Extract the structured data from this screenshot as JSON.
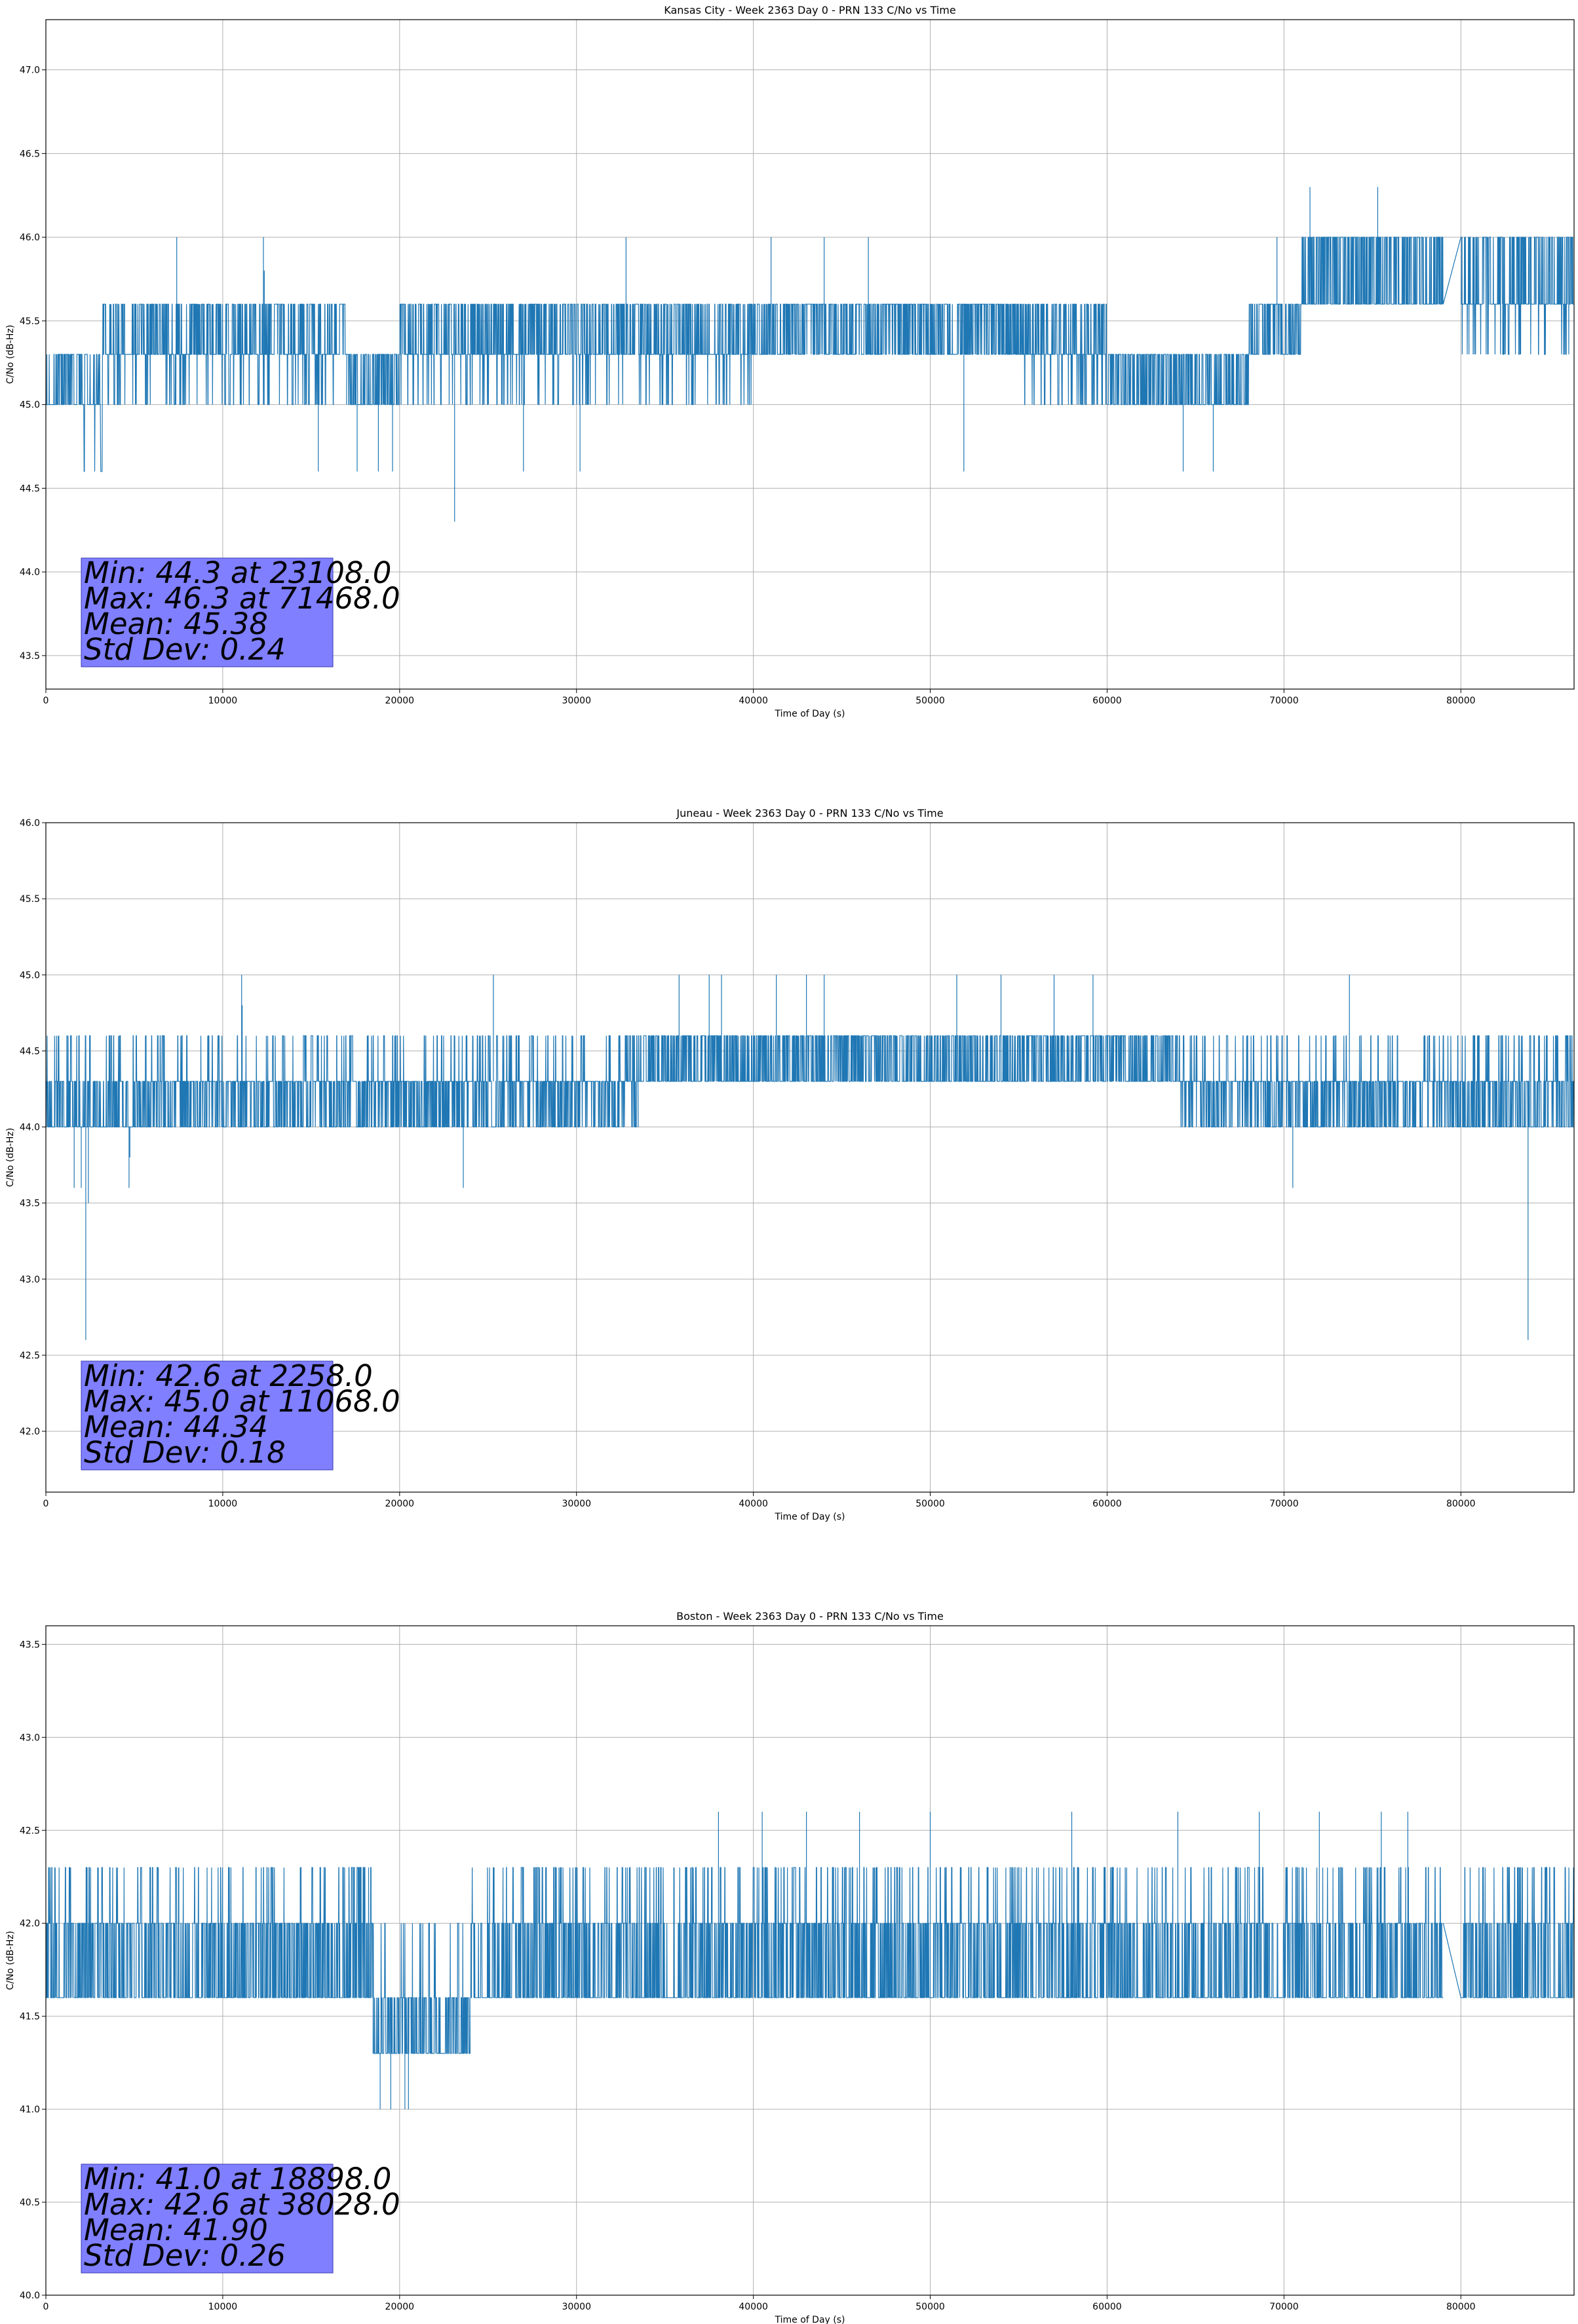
{
  "figure": {
    "description_type": "stacked C/No line charts"
  },
  "chart_data": [
    {
      "type": "line",
      "title": "Kansas City - Week 2363 Day 0 - PRN 133 C/No vs Time",
      "xlabel": "Time of Day (s)",
      "ylabel": "C/No (dB-Hz)",
      "xlim": [
        0,
        86400
      ],
      "ylim": [
        43.3,
        47.3
      ],
      "xticks": [
        0,
        10000,
        20000,
        30000,
        40000,
        50000,
        60000,
        70000,
        80000
      ],
      "yticks": [
        43.5,
        44.0,
        44.5,
        45.0,
        45.5,
        46.0,
        46.5,
        47.0
      ],
      "ytick_decimals": 1,
      "color": "#1f77b4",
      "seed": 11,
      "segments": [
        {
          "x0": 0,
          "x1": 2000,
          "levels": [
            45.0,
            45.3
          ],
          "seg": 180
        },
        {
          "x0": 2000,
          "x1": 3200,
          "levels": [
            45.0,
            45.3,
            44.6
          ],
          "seg": 60
        },
        {
          "x0": 3200,
          "x1": 17000,
          "levels": [
            45.3,
            45.6,
            45.0
          ],
          "seg": 1200
        },
        {
          "x0": 17000,
          "x1": 20000,
          "levels": [
            45.0,
            45.3
          ],
          "seg": 250
        },
        {
          "x0": 20000,
          "x1": 40000,
          "levels": [
            45.3,
            45.6,
            45.0
          ],
          "seg": 1700
        },
        {
          "x0": 40000,
          "x1": 55000,
          "levels": [
            45.6,
            45.3
          ],
          "seg": 1400
        },
        {
          "x0": 55000,
          "x1": 60000,
          "levels": [
            45.3,
            45.6,
            45.0
          ],
          "seg": 400
        },
        {
          "x0": 60000,
          "x1": 68000,
          "levels": [
            45.0,
            45.3
          ],
          "seg": 700
        },
        {
          "x0": 68000,
          "x1": 71000,
          "levels": [
            45.3,
            45.6
          ],
          "seg": 250
        },
        {
          "x0": 71000,
          "x1": 79000,
          "levels": [
            45.6,
            46.0
          ],
          "seg": 800
        },
        {
          "x0": 80000,
          "x1": 86400,
          "levels": [
            45.6,
            46.0,
            45.3
          ],
          "seg": 600
        }
      ],
      "bridges": [
        {
          "x0": 79000,
          "y0": 45.6,
          "x1": 80000,
          "y1": 46.0
        }
      ],
      "spikes": [
        [
          7400,
          46.0
        ],
        [
          12300,
          46.0
        ],
        [
          12350,
          45.8
        ],
        [
          15400,
          44.6
        ],
        [
          17600,
          44.6
        ],
        [
          18800,
          44.6
        ],
        [
          19600,
          44.6
        ],
        [
          23108,
          44.3
        ],
        [
          27000,
          44.6
        ],
        [
          30200,
          44.6
        ],
        [
          32800,
          46.0
        ],
        [
          41000,
          46.0
        ],
        [
          44000,
          46.0
        ],
        [
          46500,
          46.0
        ],
        [
          51900,
          44.6
        ],
        [
          64300,
          44.6
        ],
        [
          66000,
          44.6
        ],
        [
          69600,
          46.0
        ],
        [
          71468,
          46.3
        ],
        [
          75300,
          46.3
        ],
        [
          77000,
          46.0
        ],
        [
          85000,
          46.0
        ]
      ],
      "stats": [
        "Min: 44.3 at 23108.0",
        "Max: 46.3 at 71468.0",
        "Mean: 45.38",
        "Std Dev: 0.24"
      ]
    },
    {
      "type": "line",
      "title": "Juneau - Week 2363 Day 0 - PRN 133 C/No vs Time",
      "xlabel": "Time of Day (s)",
      "ylabel": "C/No (dB-Hz)",
      "xlim": [
        0,
        86400
      ],
      "ylim": [
        41.6,
        46.0
      ],
      "xticks": [
        0,
        10000,
        20000,
        30000,
        40000,
        50000,
        60000,
        70000,
        80000
      ],
      "yticks": [
        42.0,
        42.5,
        43.0,
        43.5,
        44.0,
        44.5,
        45.0,
        45.5,
        46.0
      ],
      "ytick_decimals": 1,
      "color": "#1f77b4",
      "seed": 23,
      "segments": [
        {
          "x0": 0,
          "x1": 6000,
          "levels": [
            44.0,
            44.3,
            44.6
          ],
          "seg": 500
        },
        {
          "x0": 6000,
          "x1": 33500,
          "levels": [
            44.3,
            44.0,
            44.6
          ],
          "seg": 2400
        },
        {
          "x0": 33500,
          "x1": 64000,
          "levels": [
            44.3,
            44.6
          ],
          "seg": 2600
        },
        {
          "x0": 64000,
          "x1": 86400,
          "levels": [
            44.3,
            44.0,
            44.6
          ],
          "seg": 1900
        }
      ],
      "bridges": [],
      "spikes": [
        [
          1600,
          43.6
        ],
        [
          2000,
          43.6
        ],
        [
          2258,
          42.6
        ],
        [
          2400,
          43.5
        ],
        [
          4700,
          43.6
        ],
        [
          4750,
          43.8
        ],
        [
          11068,
          45.0
        ],
        [
          11100,
          44.8
        ],
        [
          23600,
          43.6
        ],
        [
          25300,
          45.0
        ],
        [
          35800,
          45.0
        ],
        [
          37500,
          45.0
        ],
        [
          38200,
          45.0
        ],
        [
          41300,
          45.0
        ],
        [
          43000,
          45.0
        ],
        [
          44000,
          45.0
        ],
        [
          51500,
          45.0
        ],
        [
          54000,
          45.0
        ],
        [
          57000,
          45.0
        ],
        [
          59200,
          45.0
        ],
        [
          70500,
          43.6
        ],
        [
          73700,
          45.0
        ],
        [
          83800,
          42.6
        ]
      ],
      "stats": [
        "Min: 42.6 at 2258.0",
        "Max: 45.0 at 11068.0",
        "Mean: 44.34",
        "Std Dev: 0.18"
      ]
    },
    {
      "type": "line",
      "title": "Boston - Week 2363 Day 0 - PRN 133 C/No vs Time",
      "xlabel": "Time of Day (s)",
      "ylabel": "C/No (dB-Hz)",
      "xlim": [
        0,
        86400
      ],
      "ylim": [
        40.0,
        43.6
      ],
      "xticks": [
        0,
        10000,
        20000,
        30000,
        40000,
        50000,
        60000,
        70000,
        80000
      ],
      "yticks": [
        40.0,
        40.5,
        41.0,
        41.5,
        42.0,
        42.5,
        43.0,
        43.5
      ],
      "ytick_decimals": 1,
      "color": "#1f77b4",
      "seed": 37,
      "segments": [
        {
          "x0": 0,
          "x1": 7000,
          "levels": [
            41.6,
            42.0,
            42.3
          ],
          "seg": 600
        },
        {
          "x0": 7000,
          "x1": 18500,
          "levels": [
            41.6,
            42.0,
            42.3,
            41.3
          ],
          "seg": 1000
        },
        {
          "x0": 18500,
          "x1": 24000,
          "levels": [
            41.3,
            41.6,
            42.0
          ],
          "seg": 450
        },
        {
          "x0": 24000,
          "x1": 34000,
          "levels": [
            41.6,
            42.0,
            42.3,
            41.3
          ],
          "seg": 850
        },
        {
          "x0": 34000,
          "x1": 79000,
          "levels": [
            41.6,
            42.0,
            42.3
          ],
          "seg": 3900
        },
        {
          "x0": 80000,
          "x1": 86400,
          "levels": [
            41.6,
            42.0,
            42.3
          ],
          "seg": 550
        }
      ],
      "bridges": [
        {
          "x0": 79000,
          "y0": 42.0,
          "x1": 80000,
          "y1": 41.6
        }
      ],
      "spikes": [
        [
          18898,
          41.0
        ],
        [
          19500,
          41.0
        ],
        [
          20300,
          41.0
        ],
        [
          20500,
          41.0
        ],
        [
          38028,
          42.6
        ],
        [
          40500,
          42.6
        ],
        [
          43000,
          42.6
        ],
        [
          46000,
          42.6
        ],
        [
          50000,
          42.6
        ],
        [
          58000,
          42.6
        ],
        [
          64000,
          42.6
        ],
        [
          68600,
          42.6
        ],
        [
          72000,
          42.6
        ],
        [
          75500,
          42.6
        ],
        [
          77000,
          42.6
        ]
      ],
      "stats": [
        "Min: 41.0 at 18898.0",
        "Max: 42.6 at 38028.0",
        "Mean: 41.90",
        "Std Dev: 0.26"
      ]
    }
  ]
}
